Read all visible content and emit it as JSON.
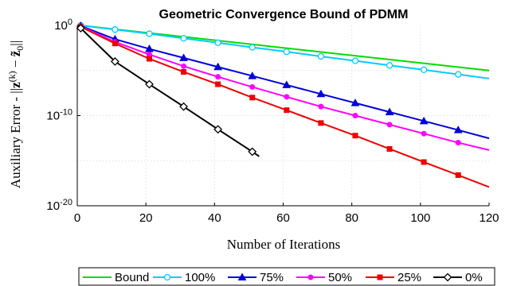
{
  "chart_data": {
    "type": "line",
    "title": "Geometric Convergence Bound of PDMM",
    "xlabel": "Number of Iterations",
    "ylabel": "Auxiliary Error - ||z(k) - z̃0||",
    "ylabel_parts": {
      "lead": "Auxiliary Error - ",
      "norm": "||",
      "z1": "z",
      "sup": "(k)",
      "minus": " − ",
      "z2": "z̃",
      "sub": "0",
      "tail": "||"
    },
    "x_scale": "linear",
    "y_scale": "log",
    "xlim": [
      0,
      120
    ],
    "ylim": [
      1e-20,
      1
    ],
    "x_ticks": [
      0,
      20,
      40,
      60,
      80,
      100,
      120
    ],
    "x_tick_labels": [
      "0",
      "20",
      "40",
      "60",
      "80",
      "100",
      "120"
    ],
    "y_tick_exponents": [
      -20,
      -10,
      0
    ],
    "y_tick_base": "10",
    "grid": true,
    "legend_position": "bottom",
    "series": [
      {
        "name": "Bound",
        "color": "#00dd00",
        "marker": "none",
        "x": [
          1,
          120
        ],
        "y": [
          1,
          1e-05
        ]
      },
      {
        "name": "100%",
        "color": "#00ccff",
        "marker": "circle",
        "x": [
          1,
          11,
          21,
          31,
          41,
          51,
          61,
          71,
          81,
          91,
          101,
          111,
          120
        ],
        "y": [
          1,
          0.35,
          0.12,
          0.037,
          0.012,
          0.0037,
          0.0012,
          0.00037,
          0.00012,
          3.7e-05,
          1.2e-05,
          3.7e-06,
          1.3e-06
        ]
      },
      {
        "name": "75%",
        "color": "#0000dd",
        "marker": "triangle",
        "x": [
          1,
          11,
          21,
          31,
          41,
          51,
          61,
          71,
          81,
          91,
          101,
          111,
          120
        ],
        "y": [
          0.9,
          0.03,
          0.0025,
          0.00025,
          2.5e-05,
          2.5e-06,
          2.5e-07,
          2.5e-08,
          2.5e-09,
          2.5e-10,
          2.5e-11,
          2.5e-12,
          3e-13
        ]
      },
      {
        "name": "50%",
        "color": "#ff00ff",
        "marker": "circle-filled",
        "x": [
          1,
          11,
          21,
          31,
          41,
          51,
          61,
          71,
          81,
          91,
          101,
          111,
          120
        ],
        "y": [
          0.8,
          0.015,
          0.0006,
          3e-05,
          2e-06,
          1.5e-07,
          1.2e-08,
          1e-09,
          1e-10,
          1e-11,
          1e-12,
          1e-13,
          1.5e-14
        ]
      },
      {
        "name": "25%",
        "color": "#ee0000",
        "marker": "square",
        "x": [
          1,
          11,
          21,
          31,
          41,
          51,
          61,
          71,
          81,
          91,
          101,
          111,
          120
        ],
        "y": [
          0.7,
          0.01,
          0.0002,
          7e-06,
          3e-07,
          1e-08,
          4e-10,
          1.5e-11,
          6e-13,
          2e-14,
          7e-16,
          2.5e-17,
          1.2e-18
        ]
      },
      {
        "name": "0%",
        "color": "#000000",
        "marker": "diamond",
        "x": [
          1,
          11,
          21,
          31,
          41,
          51,
          53
        ],
        "y": [
          0.5,
          0.0001,
          3e-07,
          1e-09,
          3e-12,
          1e-14,
          3e-15
        ]
      }
    ]
  }
}
